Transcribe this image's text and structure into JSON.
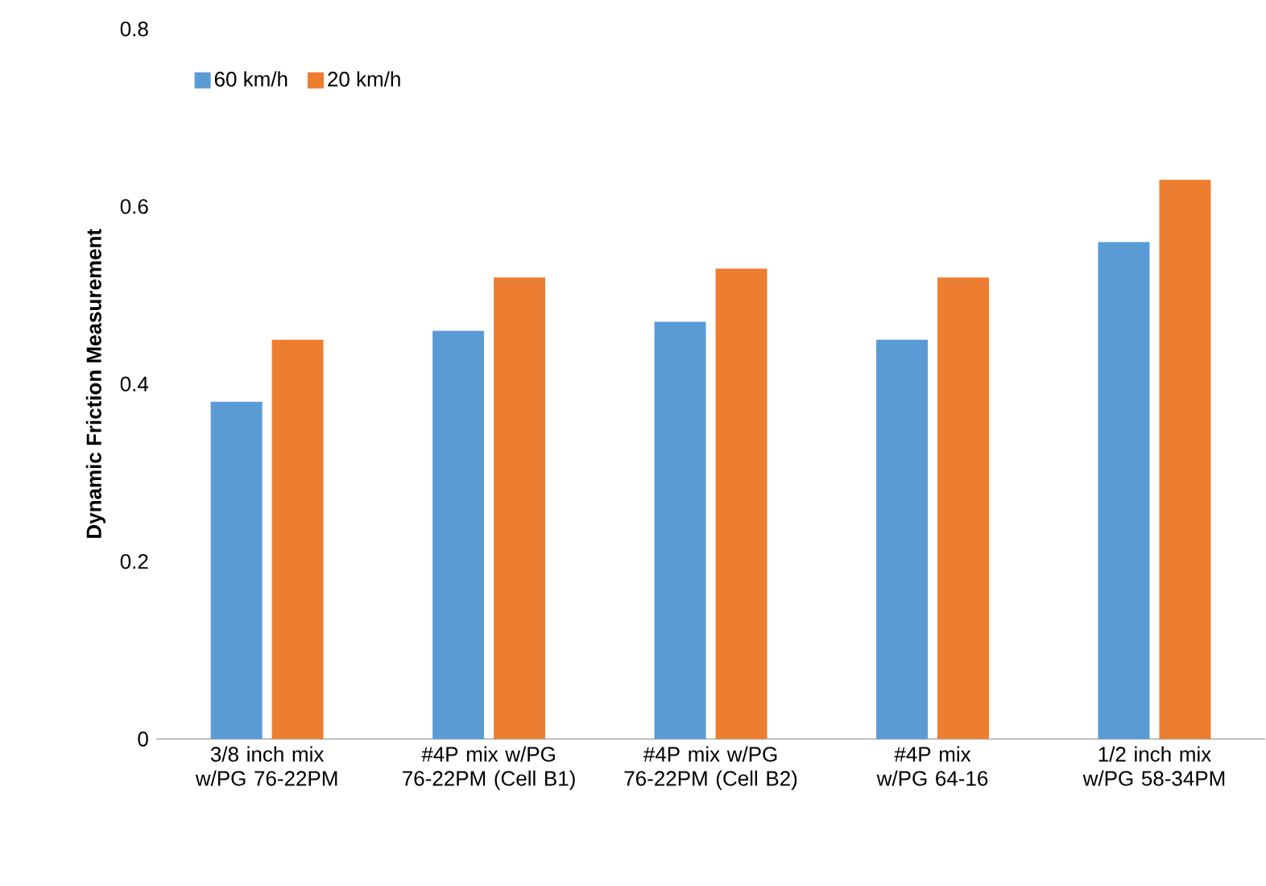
{
  "chart_data": {
    "type": "bar",
    "ylabel": "Dynamic Friction Measurement",
    "categories": [
      "3/8 inch mix w/PG 76-22PM",
      "#4P mix w/PG 76-22PM (Cell B1)",
      "#4P mix w/PG 76-22PM (Cell B2)",
      "#4P mix w/PG 64-16",
      "1/2 inch mix w/PG 58-34PM"
    ],
    "series": [
      {
        "name": "60 km/h",
        "color": "#5b9bd5",
        "values": [
          0.38,
          0.46,
          0.47,
          0.45,
          0.56
        ]
      },
      {
        "name": "20 km/h",
        "color": "#ed7d31",
        "values": [
          0.45,
          0.52,
          0.53,
          0.52,
          0.63
        ]
      }
    ],
    "ylim": [
      0,
      0.8
    ],
    "yticks": [
      0,
      0.2,
      0.4,
      0.6,
      0.8
    ],
    "legend": "top left",
    "grid": false
  }
}
